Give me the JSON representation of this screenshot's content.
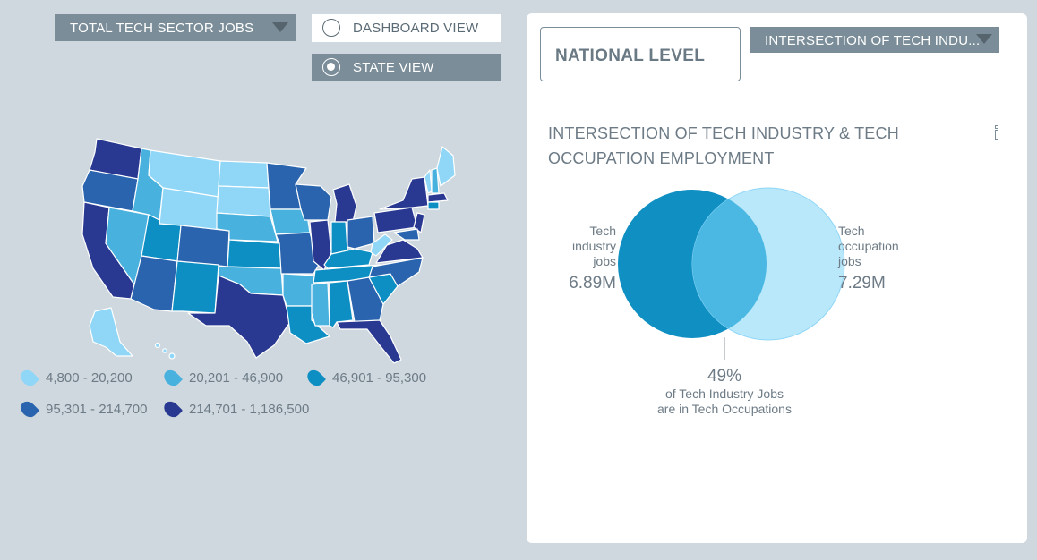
{
  "controls": {
    "metric_select": "TOTAL TECH SECTOR JOBS",
    "dashboard_view": "DASHBOARD VIEW",
    "state_view": "STATE VIEW",
    "selected_view": "state"
  },
  "legend": [
    {
      "label": "4,800 - 20,200",
      "color": "#8fd6f7"
    },
    {
      "label": "20,201 - 46,900",
      "color": "#49b1de"
    },
    {
      "label": "46,901 - 95,300",
      "color": "#0d8fc3"
    },
    {
      "label": "95,301 - 214,700",
      "color": "#2a64ae"
    },
    {
      "label": "214,701 - 1,186,500",
      "color": "#293891"
    }
  ],
  "panel": {
    "level": "NATIONAL LEVEL",
    "view_select": "INTERSECTION OF TECH INDU...",
    "title_line1": "INTERSECTION OF TECH INDUSTRY & TECH",
    "title_line2": "OCCUPATION EMPLOYMENT",
    "venn": {
      "left_label_1": "Tech",
      "left_label_2": "industry",
      "left_label_3": "jobs",
      "left_value": "6.89M",
      "right_label_1": "Tech",
      "right_label_2": "occupation",
      "right_label_3": "jobs",
      "right_value": "7.29M",
      "overlap_pct": "49%",
      "overlap_line1": "of Tech Industry Jobs",
      "overlap_line2": "are in Tech Occupations"
    }
  },
  "colors": {
    "industry": "#0f8fc2",
    "occupation": "#b8e8fa",
    "overlap": "#4ab8e3"
  }
}
